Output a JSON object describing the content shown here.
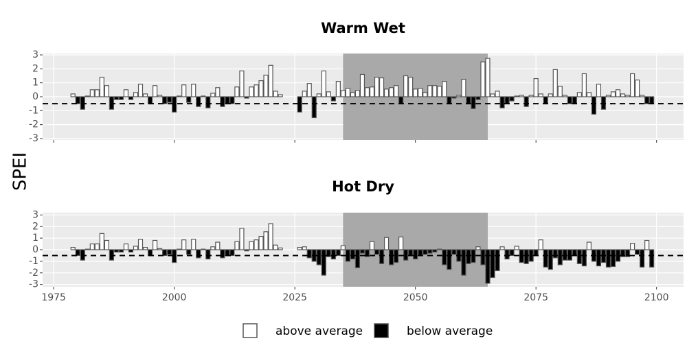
{
  "y_label": "SPEI",
  "legend": [
    {
      "name": "above average",
      "color": "#ffffff"
    },
    {
      "name": "below average",
      "color": "#000000"
    }
  ],
  "chart_data": [
    {
      "type": "bar",
      "title": "Warm Wet",
      "x": [
        1979,
        1980,
        1981,
        1982,
        1983,
        1984,
        1985,
        1986,
        1987,
        1988,
        1989,
        1990,
        1991,
        1992,
        1993,
        1994,
        1995,
        1996,
        1997,
        1998,
        1999,
        2000,
        2001,
        2002,
        2003,
        2004,
        2005,
        2006,
        2007,
        2008,
        2009,
        2010,
        2011,
        2012,
        2013,
        2014,
        2015,
        2016,
        2017,
        2018,
        2019,
        2020,
        2021,
        2022,
        2026,
        2027,
        2028,
        2029,
        2030,
        2031,
        2032,
        2033,
        2034,
        2035,
        2036,
        2037,
        2038,
        2039,
        2040,
        2041,
        2042,
        2043,
        2044,
        2045,
        2046,
        2047,
        2048,
        2049,
        2050,
        2051,
        2052,
        2053,
        2054,
        2055,
        2056,
        2057,
        2058,
        2059,
        2060,
        2061,
        2062,
        2063,
        2064,
        2065,
        2066,
        2067,
        2068,
        2069,
        2070,
        2071,
        2072,
        2073,
        2074,
        2075,
        2076,
        2077,
        2078,
        2079,
        2080,
        2081,
        2082,
        2083,
        2084,
        2085,
        2086,
        2087,
        2088,
        2089,
        2090,
        2091,
        2092,
        2093,
        2094,
        2095,
        2096,
        2097,
        2098,
        2099
      ],
      "values": [
        0.2,
        -0.5,
        -0.9,
        0.05,
        0.5,
        0.5,
        1.4,
        0.8,
        -0.9,
        -0.2,
        -0.2,
        0.5,
        -0.2,
        0.3,
        0.9,
        0.2,
        -0.5,
        0.8,
        0.1,
        -0.5,
        -0.4,
        -1.1,
        0.05,
        0.85,
        -0.4,
        0.9,
        -0.7,
        0.05,
        -0.8,
        0.25,
        0.65,
        -0.7,
        -0.5,
        -0.5,
        0.7,
        1.85,
        -0.1,
        0.7,
        0.85,
        1.15,
        1.55,
        2.25,
        0.4,
        0.15,
        -1.1,
        0.4,
        0.95,
        -1.5,
        0.2,
        1.85,
        0.35,
        -0.3,
        1.1,
        0.45,
        0.6,
        0.3,
        0.45,
        1.6,
        0.65,
        0.7,
        1.4,
        1.35,
        0.55,
        0.65,
        0.8,
        -0.5,
        1.5,
        1.4,
        0.55,
        0.6,
        0.3,
        0.8,
        0.8,
        0.75,
        1.1,
        -0.5,
        -0.1,
        0.1,
        1.25,
        -0.5,
        -0.85,
        -0.2,
        2.5,
        2.75,
        0.2,
        0.4,
        -0.8,
        -0.5,
        -0.3,
        0.05,
        0.1,
        -0.7,
        0.1,
        1.3,
        0.2,
        -0.5,
        0.2,
        1.95,
        0.75,
        0.1,
        -0.5,
        -0.5,
        0.3,
        1.65,
        0.3,
        -1.25,
        0.9,
        -0.9,
        0.1,
        0.35,
        0.5,
        0.2,
        0.1,
        1.65,
        1.2,
        0.1,
        -0.5,
        -0.5
      ],
      "xlim": [
        1972.7,
        2105.6
      ],
      "xticks": [
        1975,
        2000,
        2025,
        2050,
        2075,
        2100
      ],
      "xtick_labels": false,
      "ylim": [
        -3.1,
        3.1
      ],
      "yticks": [
        3,
        2,
        1,
        0,
        -1,
        -2,
        -3
      ],
      "shaded_xlim": [
        2035,
        2065
      ],
      "reference_line": -0.5,
      "grid": true
    },
    {
      "type": "bar",
      "title": "Hot Dry",
      "x": [
        1979,
        1980,
        1981,
        1982,
        1983,
        1984,
        1985,
        1986,
        1987,
        1988,
        1989,
        1990,
        1991,
        1992,
        1993,
        1994,
        1995,
        1996,
        1997,
        1998,
        1999,
        2000,
        2001,
        2002,
        2003,
        2004,
        2005,
        2006,
        2007,
        2008,
        2009,
        2010,
        2011,
        2012,
        2013,
        2014,
        2015,
        2016,
        2017,
        2018,
        2019,
        2020,
        2021,
        2022,
        2026,
        2027,
        2028,
        2029,
        2030,
        2031,
        2032,
        2033,
        2034,
        2035,
        2036,
        2037,
        2038,
        2039,
        2040,
        2041,
        2042,
        2043,
        2044,
        2045,
        2046,
        2047,
        2048,
        2049,
        2050,
        2051,
        2052,
        2053,
        2054,
        2055,
        2056,
        2057,
        2058,
        2059,
        2060,
        2061,
        2062,
        2063,
        2064,
        2065,
        2066,
        2067,
        2068,
        2069,
        2070,
        2071,
        2072,
        2073,
        2074,
        2075,
        2076,
        2077,
        2078,
        2079,
        2080,
        2081,
        2082,
        2083,
        2084,
        2085,
        2086,
        2087,
        2088,
        2089,
        2090,
        2091,
        2092,
        2093,
        2094,
        2095,
        2096,
        2097,
        2098,
        2099
      ],
      "values": [
        0.2,
        -0.5,
        -0.9,
        0.05,
        0.5,
        0.5,
        1.4,
        0.8,
        -0.9,
        -0.2,
        -0.2,
        0.5,
        -0.2,
        0.3,
        0.9,
        0.2,
        -0.5,
        0.8,
        0.1,
        -0.5,
        -0.4,
        -1.1,
        0.05,
        0.85,
        -0.4,
        0.9,
        -0.7,
        0.05,
        -0.8,
        0.25,
        0.65,
        -0.7,
        -0.5,
        -0.5,
        0.7,
        1.85,
        -0.1,
        0.7,
        0.85,
        1.15,
        1.55,
        2.25,
        0.4,
        0.15,
        0.2,
        0.25,
        -0.7,
        -1.0,
        -1.3,
        -2.2,
        -0.6,
        -0.8,
        -0.5,
        0.35,
        -1.0,
        -0.8,
        -1.55,
        -0.3,
        -0.6,
        0.7,
        -0.4,
        -1.2,
        1.05,
        -1.3,
        -1.1,
        1.1,
        -0.9,
        -0.5,
        -0.8,
        -0.5,
        -0.4,
        -0.3,
        -0.2,
        0.05,
        -1.3,
        -1.7,
        -0.4,
        -1.0,
        -2.2,
        -1.2,
        -1.1,
        0.25,
        -1.3,
        -2.9,
        -2.4,
        -1.8,
        0.25,
        -0.8,
        -0.5,
        0.3,
        -1.1,
        -1.2,
        -1.0,
        -0.5,
        0.85,
        -1.5,
        -1.7,
        -0.7,
        -1.3,
        -0.9,
        -0.9,
        -0.5,
        -1.2,
        -1.4,
        0.65,
        -1.0,
        -1.4,
        -1.1,
        -1.5,
        -1.45,
        -1.0,
        -0.6,
        -0.6,
        0.55,
        -0.4,
        -1.5,
        0.8,
        -1.5
      ],
      "xlim": [
        1972.7,
        2105.6
      ],
      "xticks": [
        1975,
        2000,
        2025,
        2050,
        2075,
        2100
      ],
      "xtick_labels": true,
      "ylim": [
        -3.2,
        3.2
      ],
      "yticks": [
        3,
        2,
        1,
        0,
        -1,
        -2,
        -3
      ],
      "shaded_xlim": [
        2035,
        2065
      ],
      "reference_line": -0.5,
      "grid": true
    }
  ]
}
